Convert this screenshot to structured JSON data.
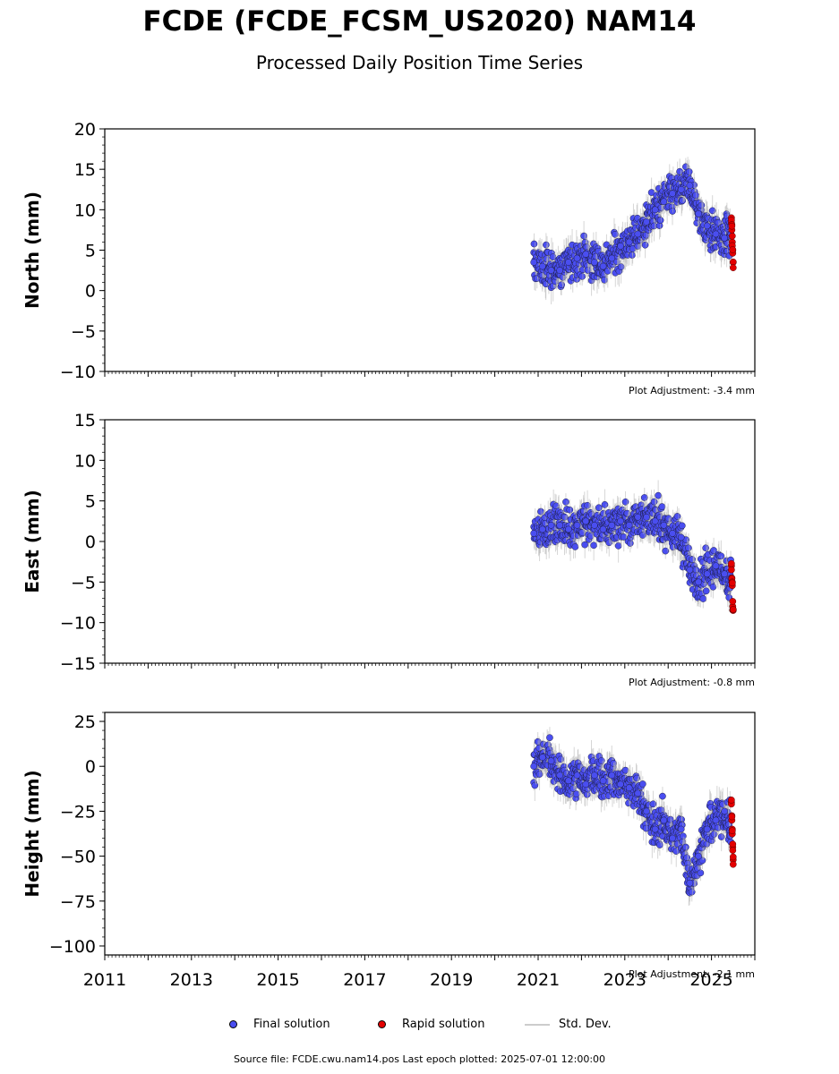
{
  "title": "FCDE (FCDE_FCSM_US2020) NAM14",
  "subtitle": "Processed Daily Position Time Series",
  "colors": {
    "final": "#4a4ef0",
    "rapid": "#e30000",
    "stddev": "#b4b4b4"
  },
  "legend": {
    "final": "Final solution",
    "rapid": "Rapid solution",
    "stddev": "Std. Dev."
  },
  "source_note": "Source file: FCDE.cwu.nam14.pos  Last epoch plotted: 2025-07-01 12:00:00",
  "chart_data": [
    {
      "type": "scatter",
      "ylabel": "North (mm)",
      "xlim": [
        2011,
        2026
      ],
      "ylim": [
        -10,
        20
      ],
      "yticks": [
        -10,
        -5,
        0,
        5,
        10,
        15,
        20
      ],
      "ytick_labels": [
        "−10",
        "−5",
        "0",
        "5",
        "10",
        "15",
        "20"
      ],
      "adjustment": "Plot Adjustment: -3.4 mm",
      "series": [
        {
          "name": "Final solution",
          "x": [
            2020.9,
            2021.1,
            2021.3,
            2021.5,
            2021.7,
            2021.9,
            2022.1,
            2022.3,
            2022.5,
            2022.7,
            2022.9,
            2023.1,
            2023.3,
            2023.5,
            2023.7,
            2023.9,
            2024.1,
            2024.3,
            2024.5,
            2024.7,
            2024.9,
            2025.1,
            2025.3,
            2025.45
          ],
          "y": [
            3.5,
            3.0,
            2.5,
            2.5,
            3.5,
            4.0,
            4.5,
            3.5,
            3.0,
            4.0,
            5.5,
            6.0,
            7.0,
            8.5,
            10.0,
            11.0,
            12.0,
            12.5,
            13.0,
            9.5,
            8.0,
            7.0,
            6.5,
            7.0
          ]
        },
        {
          "name": "Rapid solution",
          "x": [
            2025.46,
            2025.47,
            2025.48,
            2025.49,
            2025.5
          ],
          "y": [
            9.0,
            7.5,
            6.0,
            5.0,
            3.5
          ]
        }
      ]
    },
    {
      "type": "scatter",
      "ylabel": "East (mm)",
      "xlim": [
        2011,
        2026
      ],
      "ylim": [
        -15,
        15
      ],
      "yticks": [
        -15,
        -10,
        -5,
        0,
        5,
        10,
        15
      ],
      "ytick_labels": [
        "−15",
        "−10",
        "−5",
        "0",
        "5",
        "10",
        "15"
      ],
      "adjustment": "Plot Adjustment: -0.8 mm",
      "series": [
        {
          "name": "Final solution",
          "x": [
            2020.9,
            2021.1,
            2021.3,
            2021.5,
            2021.7,
            2021.9,
            2022.1,
            2022.3,
            2022.5,
            2022.7,
            2022.9,
            2023.1,
            2023.3,
            2023.5,
            2023.7,
            2023.9,
            2024.1,
            2024.3,
            2024.5,
            2024.7,
            2024.9,
            2025.1,
            2025.3,
            2025.45
          ],
          "y": [
            1.0,
            1.5,
            2.0,
            2.0,
            1.5,
            2.0,
            2.5,
            2.0,
            1.5,
            2.0,
            2.5,
            2.0,
            3.0,
            3.0,
            2.5,
            2.0,
            1.0,
            0.5,
            -3.5,
            -5.0,
            -4.0,
            -3.0,
            -4.0,
            -4.5
          ]
        },
        {
          "name": "Rapid solution",
          "x": [
            2025.46,
            2025.47,
            2025.48,
            2025.49,
            2025.5
          ],
          "y": [
            -3.0,
            -4.5,
            -5.0,
            -8.0,
            -8.5
          ]
        }
      ]
    },
    {
      "type": "scatter",
      "ylabel": "Height (mm)",
      "xlim": [
        2011,
        2026
      ],
      "ylim": [
        -105,
        30
      ],
      "yticks": [
        -100,
        -75,
        -50,
        -25,
        0,
        25
      ],
      "ytick_labels": [
        "−100",
        "−75",
        "−50",
        "−25",
        "0",
        "25"
      ],
      "xticks": [
        2011,
        2013,
        2015,
        2017,
        2019,
        2021,
        2023,
        2025
      ],
      "xtick_labels": [
        "2011",
        "2013",
        "2015",
        "2017",
        "2019",
        "2021",
        "2023",
        "2025"
      ],
      "adjustment": "Plot Adjustment: -2.1 mm",
      "series": [
        {
          "name": "Final solution",
          "x": [
            2020.9,
            2021.1,
            2021.3,
            2021.5,
            2021.7,
            2021.9,
            2022.1,
            2022.3,
            2022.5,
            2022.7,
            2022.9,
            2023.1,
            2023.3,
            2023.5,
            2023.7,
            2023.9,
            2024.1,
            2024.3,
            2024.5,
            2024.7,
            2024.9,
            2025.1,
            2025.3,
            2025.45
          ],
          "y": [
            0,
            5,
            3,
            -5,
            -8,
            -5,
            -10,
            -5,
            -8,
            -5,
            -10,
            -12,
            -15,
            -25,
            -35,
            -30,
            -40,
            -35,
            -65,
            -50,
            -35,
            -30,
            -25,
            -35
          ]
        },
        {
          "name": "Rapid solution",
          "x": [
            2025.46,
            2025.47,
            2025.48,
            2025.49,
            2025.5
          ],
          "y": [
            -20,
            -30,
            -35,
            -45,
            -52
          ]
        }
      ]
    }
  ]
}
